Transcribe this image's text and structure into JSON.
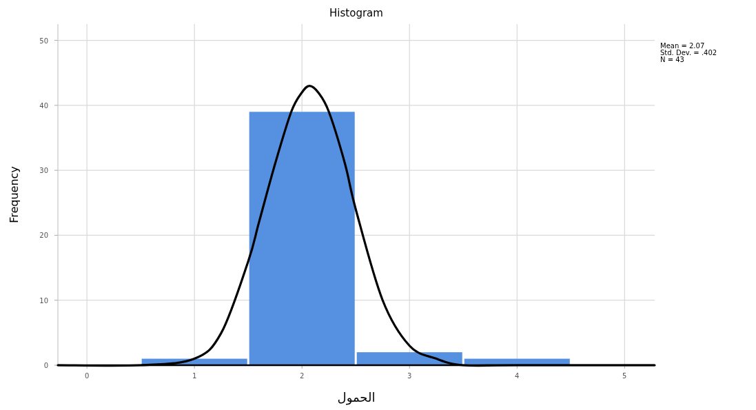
{
  "chart_data": {
    "type": "histogram",
    "title": "Histogram",
    "xlabel": "الحمول",
    "ylabel": "Frequency",
    "bins": [
      0.5,
      1.5,
      2.5,
      3.5,
      4.5
    ],
    "values": [
      1,
      39,
      2,
      1
    ],
    "color": "#5591e0",
    "series": [
      {
        "type": "line",
        "color": "#000000",
        "x": [
          -0.27,
          0.5,
          1,
          1.25,
          1.5,
          1.6,
          1.75,
          1.9,
          2,
          2.07,
          2.15,
          2.25,
          2.4,
          2.5,
          2.75,
          3,
          3.25,
          3.5,
          4,
          5.28
        ],
        "values": [
          0,
          0,
          1,
          5,
          16,
          22,
          31,
          39,
          42,
          43,
          42,
          39,
          31,
          24,
          10,
          3,
          1,
          0,
          0,
          0
        ]
      }
    ],
    "annotations": [
      "Mean = 2.07",
      "Std. Dev. = .402",
      "N = 43"
    ],
    "xlim": [
      -0.27,
      5.28
    ],
    "ylim": [
      0,
      52.5
    ],
    "xticks": [
      0,
      1,
      2,
      3,
      4,
      5
    ],
    "yticks": [
      0,
      10,
      20,
      30,
      40,
      50
    ],
    "grid": true
  }
}
